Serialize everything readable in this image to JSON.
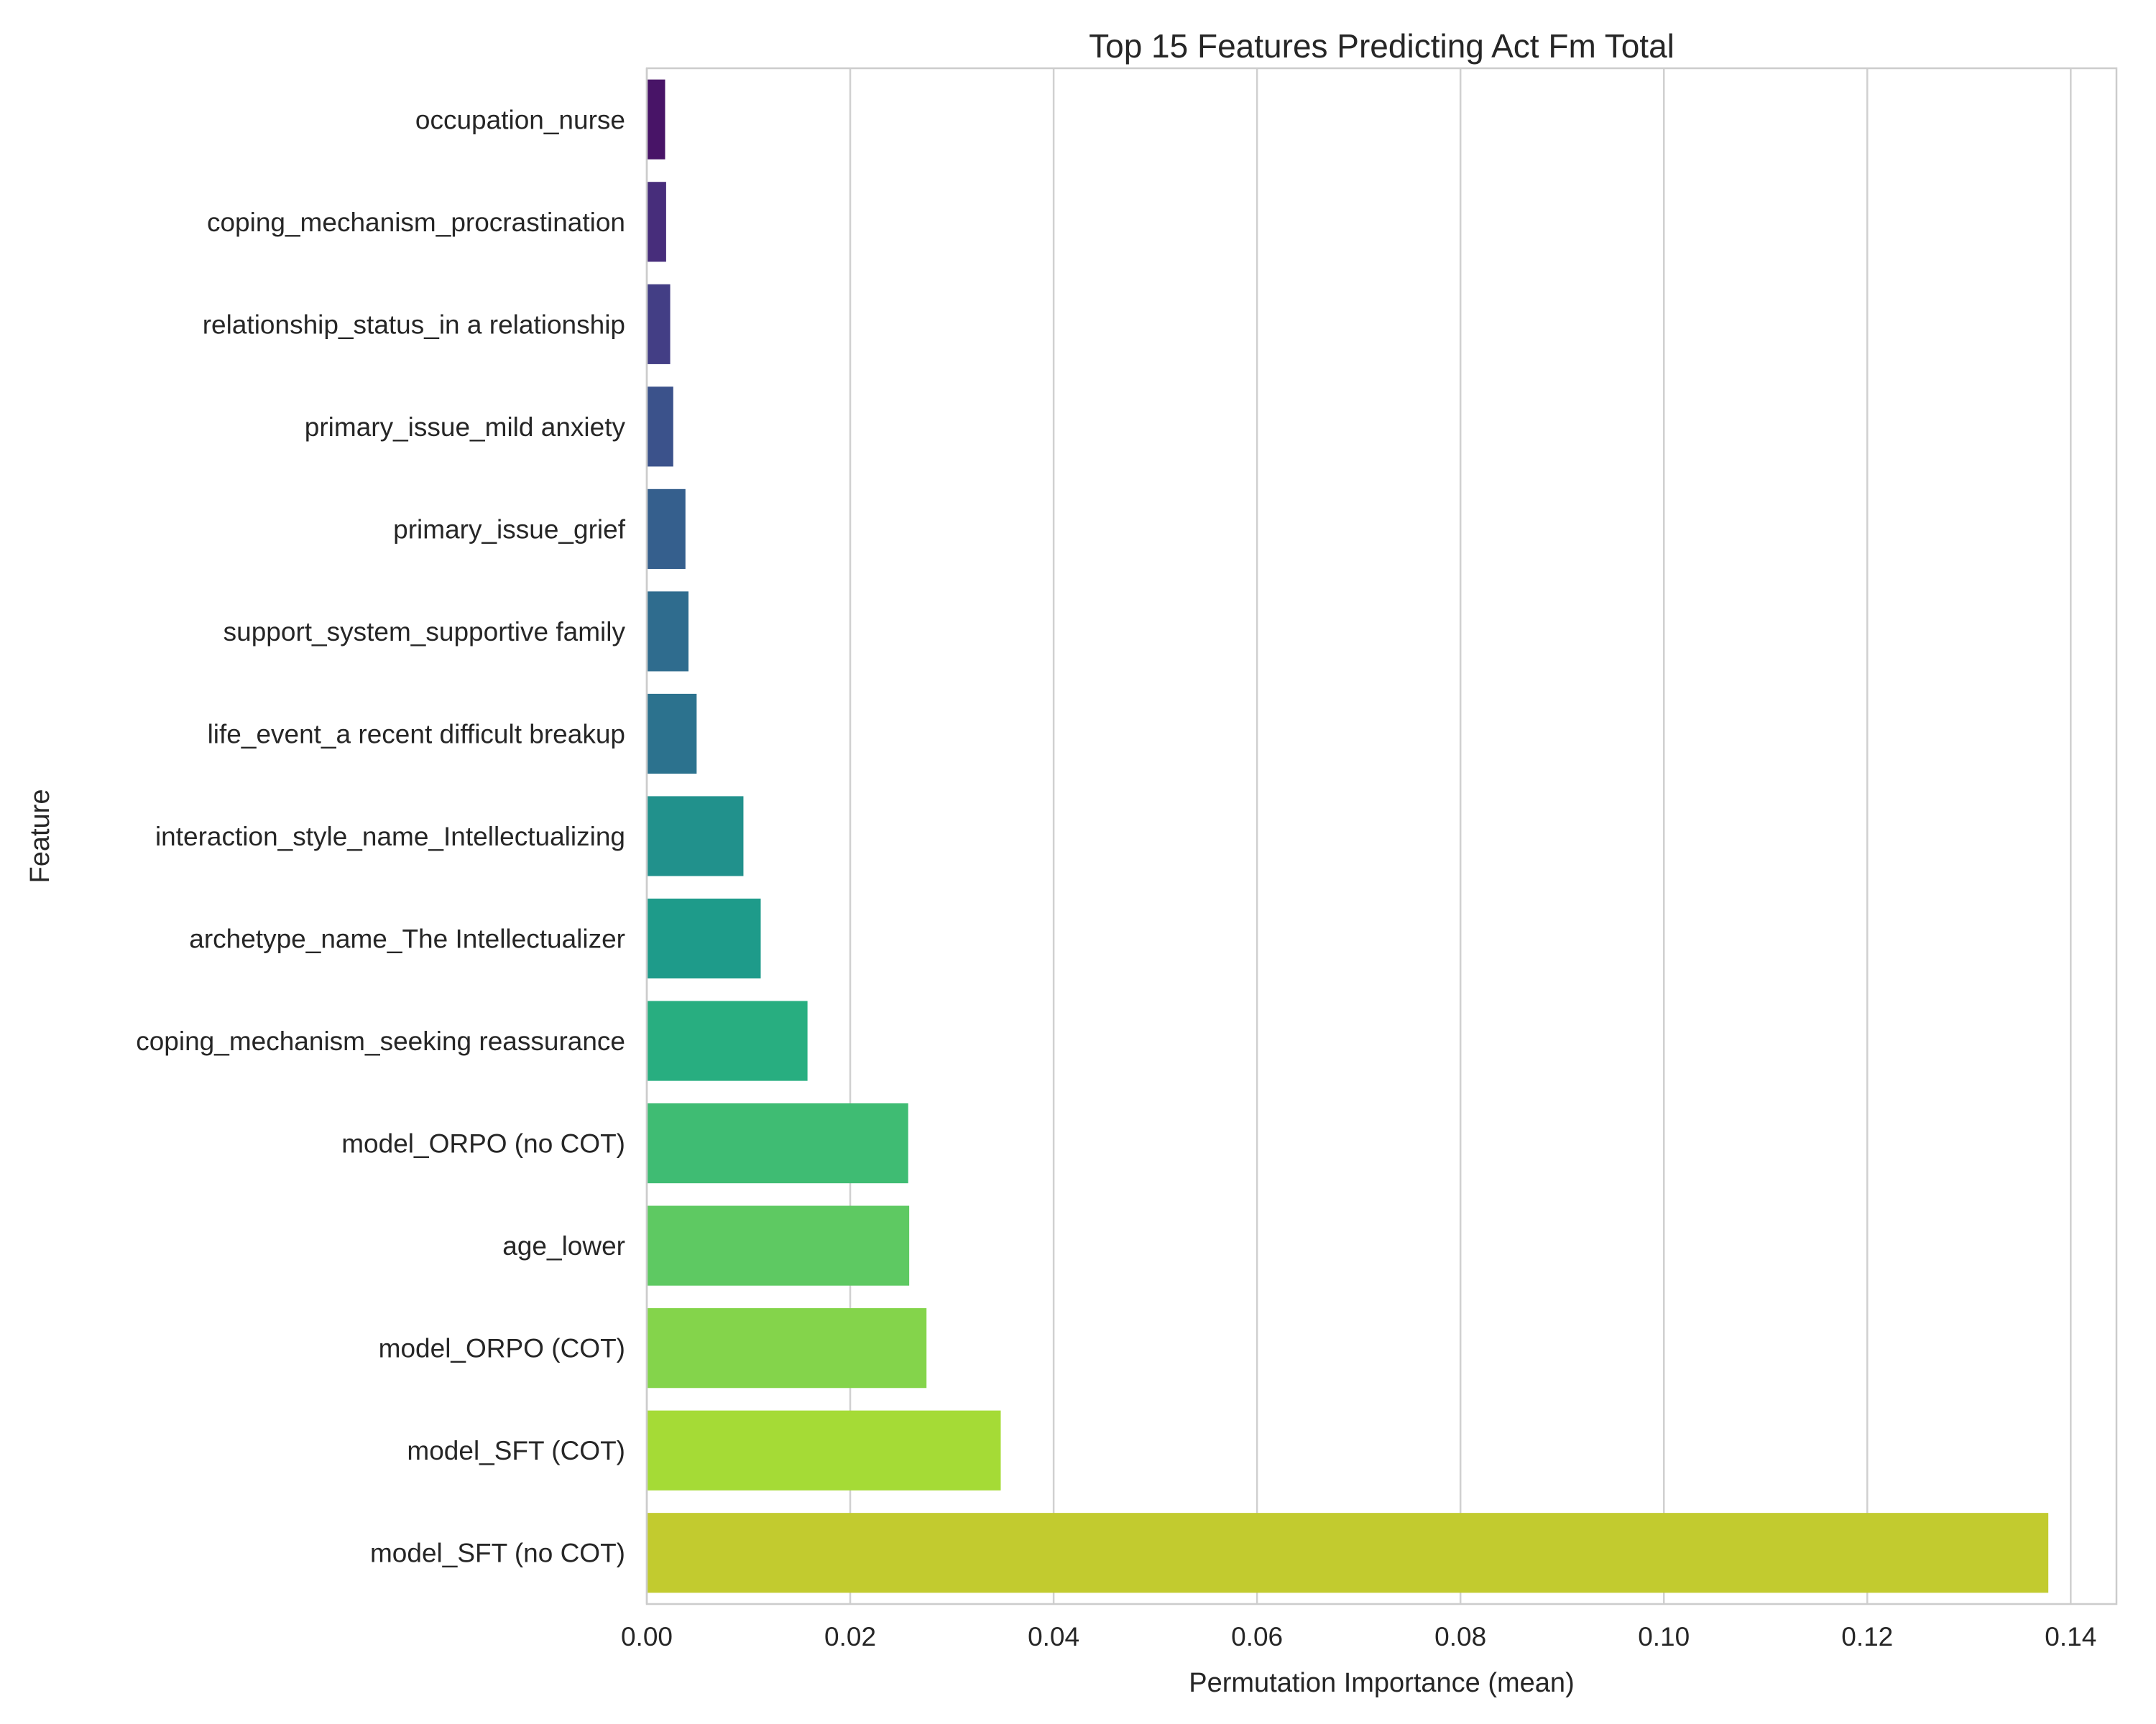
{
  "chart_data": {
    "type": "bar",
    "orientation": "horizontal",
    "title": "Top 15 Features Predicting Act Fm Total",
    "xlabel": "Permutation Importance (mean)",
    "ylabel": "Feature",
    "xlim": [
      0,
      0.1445
    ],
    "xticks": [
      "0.00",
      "0.02",
      "0.04",
      "0.06",
      "0.08",
      "0.10",
      "0.12",
      "0.14"
    ],
    "grid": "vertical",
    "legend": "none",
    "categories": [
      "occupation_nurse",
      "coping_mechanism_procrastination",
      "relationship_status_in a relationship",
      "primary_issue_mild anxiety",
      "primary_issue_grief",
      "support_system_supportive family",
      "life_event_a recent difficult breakup",
      "interaction_style_name_Intellectualizing",
      "archetype_name_The Intellectualizer",
      "coping_mechanism_seeking reassurance",
      "model_ORPO (no COT)",
      "age_lower",
      "model_ORPO (COT)",
      "model_SFT (COT)",
      "model_SFT (no COT)"
    ],
    "values": [
      0.0018,
      0.0019,
      0.0023,
      0.0026,
      0.0038,
      0.0041,
      0.0049,
      0.0095,
      0.0112,
      0.0158,
      0.0257,
      0.0258,
      0.0275,
      0.0348,
      0.1378
    ],
    "colors": [
      "#481467",
      "#472d7b",
      "#433e85",
      "#3b528b",
      "#355f8d",
      "#2f6c8e",
      "#2c728e",
      "#21918c",
      "#1e9b8a",
      "#28ae80",
      "#3fbc73",
      "#5ec962",
      "#84d44b",
      "#a5db36",
      "#c2cb2f"
    ]
  }
}
